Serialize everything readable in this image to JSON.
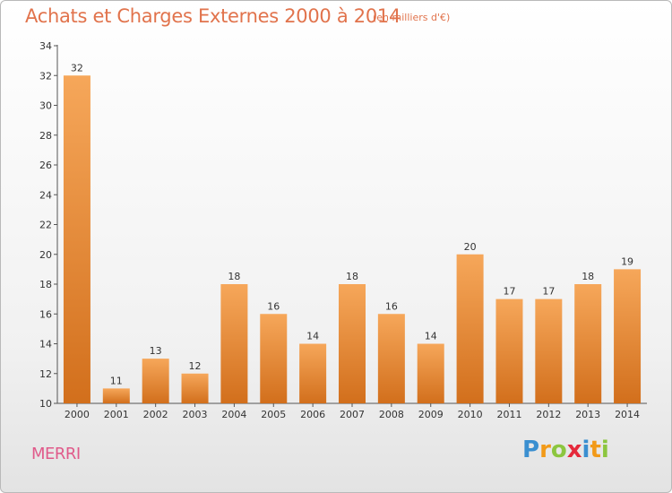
{
  "header": {
    "title": "Achats et Charges Externes 2000 à 2014",
    "subtitle": "(en milliers d'€)"
  },
  "footer": {
    "city": "MERRI",
    "logo": "Proxiti"
  },
  "colors": {
    "title": "#e1734c",
    "bar_light": "#f6a75a",
    "bar_dark": "#d26f1c",
    "city": "#e05a8a"
  },
  "chart_data": {
    "type": "bar",
    "title": "Achats et Charges Externes 2000 à 2014",
    "subtitle": "(en milliers d'€)",
    "categories": [
      "2000",
      "2001",
      "2002",
      "2003",
      "2004",
      "2005",
      "2006",
      "2007",
      "2008",
      "2009",
      "2010",
      "2011",
      "2012",
      "2013",
      "2014"
    ],
    "values": [
      32,
      11,
      13,
      12,
      18,
      16,
      14,
      18,
      16,
      14,
      20,
      17,
      17,
      18,
      19
    ],
    "ylim": [
      10,
      34
    ],
    "yticks": [
      10,
      12,
      14,
      16,
      18,
      20,
      22,
      24,
      26,
      28,
      30,
      32,
      34
    ],
    "grid": false,
    "legend": "none"
  }
}
